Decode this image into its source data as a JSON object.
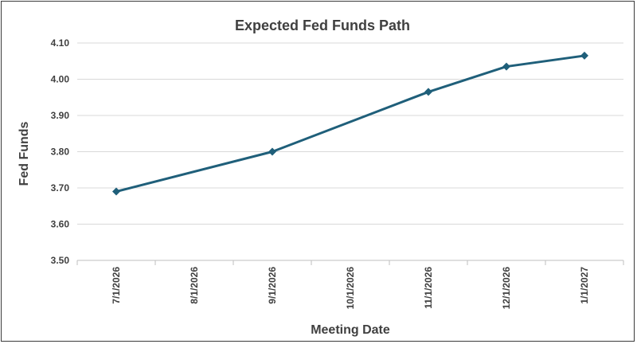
{
  "chart_data": {
    "type": "line",
    "title": "Expected Fed Funds Path",
    "xlabel": "Meeting Date",
    "ylabel": "Fed Funds",
    "ylim": [
      3.5,
      4.1
    ],
    "yticks": [
      "3.50",
      "3.60",
      "3.70",
      "3.80",
      "3.90",
      "4.00",
      "4.10"
    ],
    "categories": [
      "7/1/2026",
      "8/1/2026",
      "9/1/2026",
      "10/1/2026",
      "11/1/2026",
      "12/1/2026",
      "1/1/2027"
    ],
    "series": [
      {
        "points": [
          {
            "x": "7/1/2026",
            "y": 3.69
          },
          {
            "x": "9/1/2026",
            "y": 3.8
          },
          {
            "x": "11/1/2026",
            "y": 3.965
          },
          {
            "x": "12/1/2026",
            "y": 4.035
          },
          {
            "x": "1/1/2027",
            "y": 4.065
          }
        ],
        "color": "#1f5f7a",
        "marker": "diamond"
      }
    ],
    "grid": true,
    "legend": "none"
  }
}
